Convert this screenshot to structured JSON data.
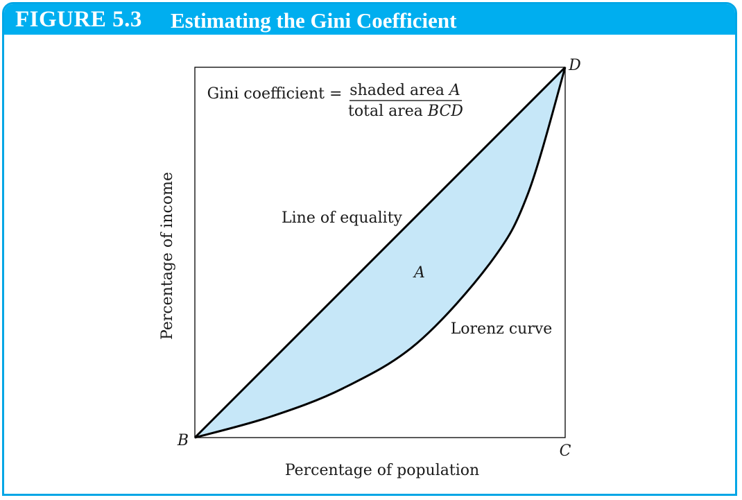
{
  "figure": {
    "number": "FIGURE 5.3",
    "title": "Estimating the Gini Coefficient"
  },
  "colors": {
    "header": "#00aeef",
    "shaded_area": "#c6e7f8",
    "lines": "#000000"
  },
  "chart_data": {
    "type": "area",
    "xlabel": "Percentage of population",
    "ylabel": "Percentage of income",
    "xlim": [
      0,
      100
    ],
    "ylim": [
      0,
      100
    ],
    "grid": false,
    "series": [
      {
        "name": "Line of equality",
        "x": [
          0,
          100
        ],
        "y": [
          0,
          100
        ]
      },
      {
        "name": "Lorenz curve",
        "x": [
          0,
          20,
          40,
          60,
          80,
          90,
          100
        ],
        "y": [
          0,
          5.5,
          13.3,
          25.5,
          47.5,
          66,
          100
        ]
      }
    ],
    "annotations": {
      "formula_lhs": "Gini coefficient =",
      "formula_num_text": "shaded area ",
      "formula_num_var": "A",
      "formula_den_text": "total area ",
      "formula_den_var": "BCD",
      "area_label": "A",
      "point_B": "B",
      "point_C": "C",
      "point_D": "D"
    }
  }
}
